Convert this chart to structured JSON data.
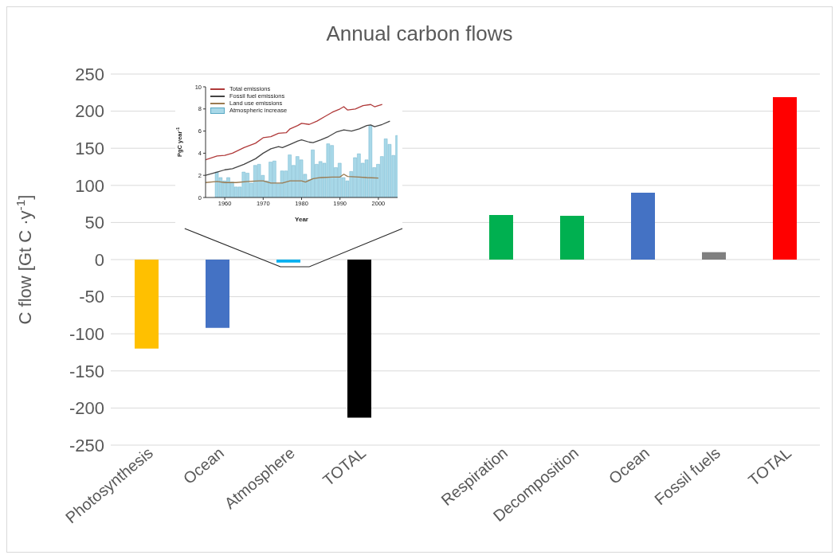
{
  "chart_data": [
    {
      "type": "bar",
      "title": "Annual carbon flows",
      "ylabel": "C flow [Gt C ·y$^{-1}$]",
      "categories": [
        "Photosynthesis",
        "Ocean",
        "Atmosphere",
        "TOTAL",
        null,
        "Respiration",
        "Decomposition",
        "Ocean",
        "Fossil fuels",
        "TOTAL"
      ],
      "values": [
        -120,
        -92,
        -4,
        -213,
        null,
        60,
        59,
        90,
        10,
        219
      ],
      "colors": [
        "#ffc000",
        "#4472c4",
        "#00b0f0",
        "#000000",
        "#ffffff",
        "#00b050",
        "#00b050",
        "#4472c4",
        "#808080",
        "#ff0000"
      ],
      "ylim": [
        -250,
        250
      ],
      "yticks": [
        -250,
        -200,
        -150,
        -100,
        -50,
        0,
        50,
        100,
        150,
        200,
        250
      ],
      "grid": "y"
    },
    {
      "type": "line",
      "xlabel": "Year",
      "ylabel": "PgC year$^{-1}$",
      "xlim": [
        1955,
        2005
      ],
      "xticks": [
        1960,
        1970,
        1980,
        1990,
        2000
      ],
      "ylim": [
        0,
        10
      ],
      "yticks": [
        0,
        2,
        4,
        6,
        8,
        10
      ],
      "legend": "top left",
      "series": [
        {
          "name": "Total emissions",
          "color": "#b03a3a",
          "x": [
            1955,
            1958,
            1960,
            1962,
            1965,
            1968,
            1970,
            1972,
            1974,
            1976,
            1977,
            1979,
            1980,
            1982,
            1984,
            1986,
            1988,
            1990,
            1991,
            1992,
            1994,
            1996,
            1998,
            1999,
            2001
          ],
          "values": [
            3.4,
            3.75,
            3.8,
            4.0,
            4.5,
            4.9,
            5.4,
            5.5,
            5.8,
            5.85,
            6.2,
            6.5,
            6.7,
            6.6,
            6.9,
            7.3,
            7.7,
            8.0,
            8.2,
            7.9,
            8.0,
            8.3,
            8.4,
            8.2,
            8.4
          ]
        },
        {
          "name": "Fossil fuel emissions",
          "color": "#444444",
          "x": [
            1955,
            1958,
            1960,
            1962,
            1965,
            1968,
            1970,
            1972,
            1974,
            1975,
            1977,
            1979,
            1980,
            1982,
            1983,
            1985,
            1987,
            1989,
            1991,
            1993,
            1995,
            1997,
            1998,
            1999,
            2001,
            2003
          ],
          "values": [
            2.0,
            2.3,
            2.5,
            2.6,
            3.0,
            3.5,
            4.0,
            4.4,
            4.6,
            4.5,
            4.8,
            5.1,
            5.2,
            5.0,
            4.95,
            5.2,
            5.5,
            5.9,
            6.1,
            6.0,
            6.2,
            6.5,
            6.55,
            6.4,
            6.6,
            6.9
          ]
        },
        {
          "name": "Land use emissions",
          "color": "#9a7a50",
          "x": [
            1955,
            1958,
            1960,
            1963,
            1966,
            1969,
            1970,
            1972,
            1975,
            1977,
            1980,
            1981,
            1983,
            1985,
            1988,
            1990,
            1991,
            1992,
            1995,
            1997,
            2000
          ],
          "values": [
            1.35,
            1.45,
            1.35,
            1.35,
            1.45,
            1.5,
            1.5,
            1.3,
            1.3,
            1.5,
            1.5,
            1.4,
            1.7,
            1.8,
            1.85,
            1.85,
            2.1,
            1.9,
            1.85,
            1.8,
            1.75
          ]
        },
        {
          "name": "Atmospheric increase",
          "type": "bar",
          "color": "#a8d8e8",
          "x": [
            1958,
            1959,
            1960,
            1961,
            1962,
            1963,
            1964,
            1965,
            1966,
            1967,
            1968,
            1969,
            1970,
            1971,
            1972,
            1973,
            1974,
            1975,
            1976,
            1977,
            1978,
            1979,
            1980,
            1981,
            1982,
            1983,
            1984,
            1985,
            1986,
            1987,
            1988,
            1989,
            1990,
            1991,
            1992,
            1993,
            1994,
            1995,
            1996,
            1997,
            1998,
            1999,
            2000,
            2001,
            2002,
            2003,
            2004,
            2005
          ],
          "values": [
            2.3,
            1.8,
            1.5,
            1.8,
            1.4,
            0.95,
            0.95,
            2.3,
            2.2,
            1.3,
            2.9,
            3.0,
            2.0,
            1.5,
            3.2,
            3.3,
            1.25,
            2.4,
            2.4,
            3.85,
            2.9,
            3.7,
            3.4,
            2.1,
            1.6,
            4.3,
            3.0,
            3.25,
            3.1,
            4.85,
            4.7,
            2.7,
            3.1,
            1.8,
            1.5,
            2.35,
            3.6,
            3.95,
            3.1,
            3.4,
            6.5,
            2.7,
            3.0,
            3.7,
            5.3,
            4.8,
            3.8,
            5.6
          ]
        }
      ]
    }
  ]
}
